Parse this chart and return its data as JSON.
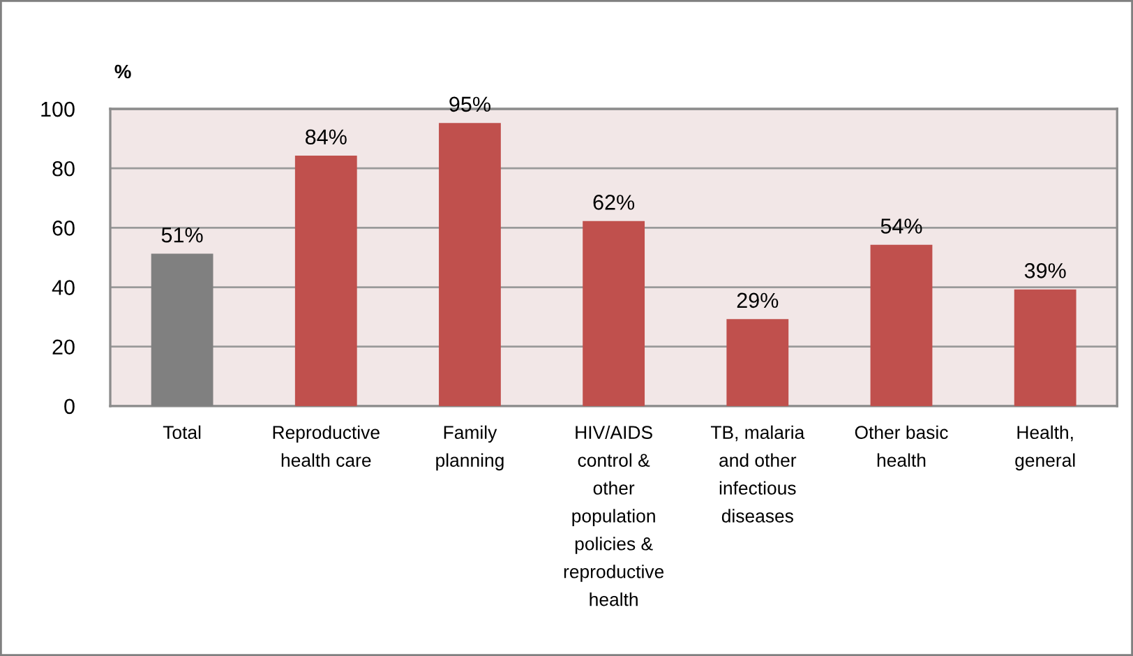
{
  "chart_data": {
    "type": "bar",
    "ylabel": "%",
    "categories": [
      "Total",
      "Reproductive\nhealth care",
      "Family\nplanning",
      "HIV/AIDS\ncontrol &\nother\npopulation\npolicies &\nreproductive\nhealth",
      "TB, malaria\nand other\ninfectious\ndiseases",
      "Other basic\nhealth",
      "Health,\ngeneral"
    ],
    "values": [
      51,
      84,
      95,
      62,
      29,
      54,
      39
    ],
    "colors": [
      "#808080",
      "#c0504d",
      "#c0504d",
      "#c0504d",
      "#c0504d",
      "#c0504d",
      "#c0504d"
    ],
    "value_labels": [
      "51%",
      "84%",
      "95%",
      "62%",
      "29%",
      "54%",
      "39%"
    ],
    "ylim": [
      0,
      100
    ],
    "yticks": [
      0,
      20,
      40,
      60,
      80,
      100
    ],
    "grid": "y",
    "legend": false
  }
}
